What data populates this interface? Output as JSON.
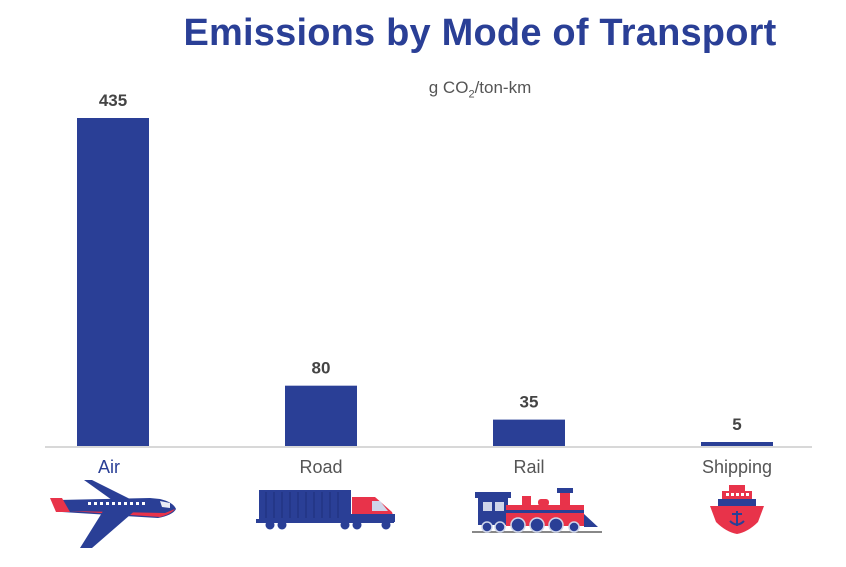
{
  "chart_data": {
    "type": "bar",
    "title": "Emissions by Mode of Transport",
    "subtitle": {
      "prefix": "g CO",
      "subscript": "2",
      "suffix": "/ton-km"
    },
    "categories": [
      "Air",
      "Road",
      "Rail",
      "Shipping"
    ],
    "values": [
      435,
      80,
      35,
      5
    ],
    "value_labels": [
      "435",
      "80",
      "35",
      "5"
    ],
    "ylim": [
      0,
      435
    ],
    "grid": false,
    "legend": "none",
    "icons": [
      "airplane-icon",
      "truck-icon",
      "train-icon",
      "ship-icon"
    ]
  },
  "colors": {
    "bar": "#2a3f96",
    "accent": "#e8334a",
    "label_air": "#2a3f96",
    "label_other": "#555555",
    "axis": "#cccccc"
  }
}
